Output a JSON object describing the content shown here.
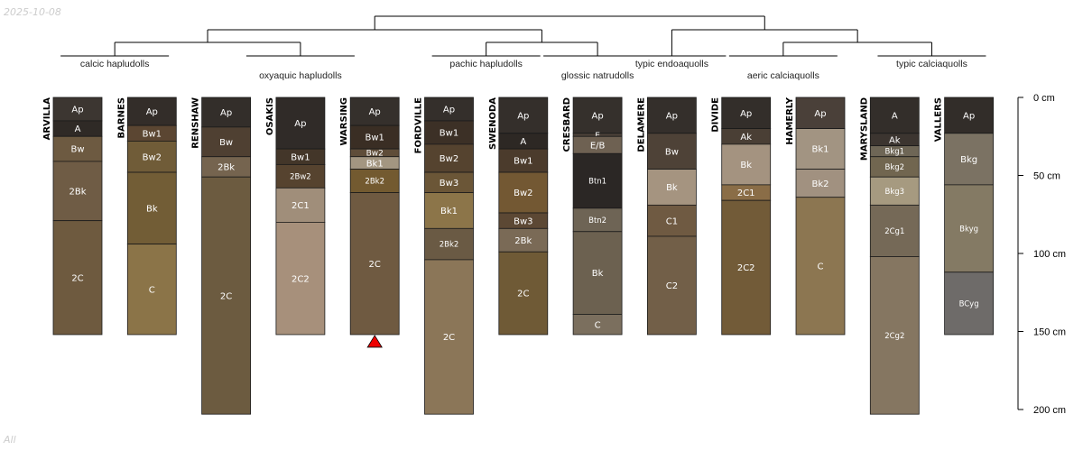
{
  "date_stamp": "2025-10-08",
  "footer_note": "All",
  "depth_axis": {
    "unit": "cm",
    "max_depth": 200,
    "ticks": [
      {
        "depth": 0,
        "label": "0 cm"
      },
      {
        "depth": 50,
        "label": "50 cm"
      },
      {
        "depth": 100,
        "label": "100 cm"
      },
      {
        "depth": 150,
        "label": "150 cm"
      },
      {
        "depth": 200,
        "label": "200 cm"
      }
    ]
  },
  "groups": [
    {
      "label": "calcic hapludolls",
      "members": [
        "ARVILLA",
        "BARNES"
      ]
    },
    {
      "label": "oxyaquic hapludolls",
      "members": [
        "RENSHAW",
        "OSAKIS",
        "WARSING"
      ]
    },
    {
      "label": "pachic hapludolls",
      "members": [
        "FORDVILLE",
        "SWENODA"
      ]
    },
    {
      "label": "glossic natrudolls",
      "members": [
        "CRESBARD"
      ]
    },
    {
      "label": "typic endoaquolls",
      "members": [
        "DELAMERE"
      ]
    },
    {
      "label": "aeric calciaquolls",
      "members": [
        "DIVIDE",
        "HAMERLY"
      ]
    },
    {
      "label": "typic calciaquolls",
      "members": [
        "MARYSLAND",
        "VALLERS"
      ]
    }
  ],
  "profiles": [
    {
      "name": "ARVILLA",
      "horizons": [
        {
          "name": "Ap",
          "top": 0,
          "bottom": 15,
          "color": "#3c3631"
        },
        {
          "name": "A",
          "top": 15,
          "bottom": 25,
          "color": "#2f2a26"
        },
        {
          "name": "Bw",
          "top": 25,
          "bottom": 41,
          "color": "#6d5a41"
        },
        {
          "name": "2Bk",
          "top": 41,
          "bottom": 79,
          "color": "#6f5c45"
        },
        {
          "name": "2C",
          "top": 79,
          "bottom": 152,
          "color": "#6e5a3f"
        }
      ]
    },
    {
      "name": "BARNES",
      "horizons": [
        {
          "name": "Ap",
          "top": 0,
          "bottom": 18,
          "color": "#332d29"
        },
        {
          "name": "Bw1",
          "top": 18,
          "bottom": 28,
          "color": "#5b4632"
        },
        {
          "name": "Bw2",
          "top": 28,
          "bottom": 48,
          "color": "#705c38"
        },
        {
          "name": "Bk",
          "top": 48,
          "bottom": 94,
          "color": "#725d36"
        },
        {
          "name": "C",
          "top": 94,
          "bottom": 152,
          "color": "#8b7448"
        }
      ]
    },
    {
      "name": "RENSHAW",
      "horizons": [
        {
          "name": "Ap",
          "top": 0,
          "bottom": 19,
          "color": "#332e2a"
        },
        {
          "name": "Bw",
          "top": 19,
          "bottom": 38,
          "color": "#4f4032"
        },
        {
          "name": "2Bk",
          "top": 38,
          "bottom": 51,
          "color": "#75644f"
        },
        {
          "name": "2C",
          "top": 51,
          "bottom": 203,
          "color": "#6c5b40"
        }
      ]
    },
    {
      "name": "OSAKIS",
      "horizons": [
        {
          "name": "Ap",
          "top": 0,
          "bottom": 33,
          "color": "#302b28"
        },
        {
          "name": "Bw1",
          "top": 33,
          "bottom": 43,
          "color": "#433629"
        },
        {
          "name": "2Bw2",
          "top": 43,
          "bottom": 58,
          "color": "#56432f"
        },
        {
          "name": "2C1",
          "top": 58,
          "bottom": 80,
          "color": "#a08e7a"
        },
        {
          "name": "2C2",
          "top": 80,
          "bottom": 152,
          "color": "#a7907b"
        }
      ]
    },
    {
      "name": "WARSING",
      "redox": true,
      "horizons": [
        {
          "name": "Ap",
          "top": 0,
          "bottom": 18,
          "color": "#35302c"
        },
        {
          "name": "Bw1",
          "top": 18,
          "bottom": 33,
          "color": "#3a2e24"
        },
        {
          "name": "Bw2",
          "top": 33,
          "bottom": 38,
          "color": "#5f4d39"
        },
        {
          "name": "Bk1",
          "top": 38,
          "bottom": 46,
          "color": "#a39681"
        },
        {
          "name": "2Bk2",
          "top": 46,
          "bottom": 61,
          "color": "#735a30"
        },
        {
          "name": "2C",
          "top": 61,
          "bottom": 152,
          "color": "#6f5a41"
        }
      ]
    },
    {
      "name": "FORDVILLE",
      "horizons": [
        {
          "name": "Ap",
          "top": 0,
          "bottom": 15,
          "color": "#342f2b"
        },
        {
          "name": "Bw1",
          "top": 15,
          "bottom": 30,
          "color": "#3c3026"
        },
        {
          "name": "Bw2",
          "top": 30,
          "bottom": 48,
          "color": "#55432f"
        },
        {
          "name": "Bw3",
          "top": 48,
          "bottom": 61,
          "color": "#6b5637"
        },
        {
          "name": "Bk1",
          "top": 61,
          "bottom": 84,
          "color": "#8c7549"
        },
        {
          "name": "2Bk2",
          "top": 84,
          "bottom": 104,
          "color": "#6a5a44"
        },
        {
          "name": "2C",
          "top": 104,
          "bottom": 203,
          "color": "#8b7658"
        }
      ]
    },
    {
      "name": "SWENODA",
      "horizons": [
        {
          "name": "Ap",
          "top": 0,
          "bottom": 23,
          "color": "#342f2b"
        },
        {
          "name": "A",
          "top": 23,
          "bottom": 33,
          "color": "#2d2824"
        },
        {
          "name": "Bw1",
          "top": 33,
          "bottom": 48,
          "color": "#4b3b2c"
        },
        {
          "name": "Bw2",
          "top": 48,
          "bottom": 74,
          "color": "#735833"
        },
        {
          "name": "Bw3",
          "top": 74,
          "bottom": 84,
          "color": "#5c4834"
        },
        {
          "name": "2Bk",
          "top": 84,
          "bottom": 99,
          "color": "#7a6a56"
        },
        {
          "name": "2C",
          "top": 99,
          "bottom": 152,
          "color": "#6f5a36"
        }
      ]
    },
    {
      "name": "CRESBARD",
      "horizons": [
        {
          "name": "Ap",
          "top": 0,
          "bottom": 23,
          "color": "#35302c"
        },
        {
          "name": "E",
          "top": 23,
          "bottom": 25,
          "color": "#4a4038"
        },
        {
          "name": "E/B",
          "top": 25,
          "bottom": 36,
          "color": "#6e6152"
        },
        {
          "name": "Btn1",
          "top": 36,
          "bottom": 71,
          "color": "#2b2725"
        },
        {
          "name": "Btn2",
          "top": 71,
          "bottom": 86,
          "color": "#6e6455"
        },
        {
          "name": "Bk",
          "top": 86,
          "bottom": 139,
          "color": "#6c6150"
        },
        {
          "name": "C",
          "top": 139,
          "bottom": 152,
          "color": "#7b6f5e"
        }
      ]
    },
    {
      "name": "DELAMERE",
      "horizons": [
        {
          "name": "Ap",
          "top": 0,
          "bottom": 23,
          "color": "#342f2b"
        },
        {
          "name": "Bw",
          "top": 23,
          "bottom": 46,
          "color": "#4e4237"
        },
        {
          "name": "Bk",
          "top": 46,
          "bottom": 69,
          "color": "#a59480"
        },
        {
          "name": "C1",
          "top": 69,
          "bottom": 89,
          "color": "#6f5a42"
        },
        {
          "name": "C2",
          "top": 89,
          "bottom": 152,
          "color": "#725f48"
        }
      ]
    },
    {
      "name": "DIVIDE",
      "horizons": [
        {
          "name": "Ap",
          "top": 0,
          "bottom": 20,
          "color": "#332e2a"
        },
        {
          "name": "Ak",
          "top": 20,
          "bottom": 30,
          "color": "#4a3f35"
        },
        {
          "name": "Bk",
          "top": 30,
          "bottom": 56,
          "color": "#a49380"
        },
        {
          "name": "2C1",
          "top": 56,
          "bottom": 66,
          "color": "#8a6d47"
        },
        {
          "name": "2C2",
          "top": 66,
          "bottom": 152,
          "color": "#725b38"
        }
      ]
    },
    {
      "name": "HAMERLY",
      "horizons": [
        {
          "name": "Ap",
          "top": 0,
          "bottom": 20,
          "color": "#4a4039"
        },
        {
          "name": "Bk1",
          "top": 20,
          "bottom": 46,
          "color": "#a29482"
        },
        {
          "name": "Bk2",
          "top": 46,
          "bottom": 64,
          "color": "#a19180"
        },
        {
          "name": "C",
          "top": 64,
          "bottom": 152,
          "color": "#8c7651"
        }
      ]
    },
    {
      "name": "MARYSLAND",
      "horizons": [
        {
          "name": "A",
          "top": 0,
          "bottom": 23,
          "color": "#332e2a"
        },
        {
          "name": "Ak",
          "top": 23,
          "bottom": 31,
          "color": "#3c3530"
        },
        {
          "name": "Bkg1",
          "top": 31,
          "bottom": 38,
          "color": "#6e6656"
        },
        {
          "name": "Bkg2",
          "top": 38,
          "bottom": 51,
          "color": "#716650"
        },
        {
          "name": "Bkg3",
          "top": 51,
          "bottom": 69,
          "color": "#a69a80"
        },
        {
          "name": "2Cg1",
          "top": 69,
          "bottom": 102,
          "color": "#756957"
        },
        {
          "name": "2Cg2",
          "top": 102,
          "bottom": 203,
          "color": "#857661"
        }
      ]
    },
    {
      "name": "VALLERS",
      "horizons": [
        {
          "name": "Ap",
          "top": 0,
          "bottom": 23,
          "color": "#322d29"
        },
        {
          "name": "Bkg",
          "top": 23,
          "bottom": 56,
          "color": "#7b7263"
        },
        {
          "name": "Bkyg",
          "top": 56,
          "bottom": 112,
          "color": "#847a64"
        },
        {
          "name": "BCyg",
          "top": 112,
          "bottom": 152,
          "color": "#6e6b69"
        }
      ]
    }
  ]
}
